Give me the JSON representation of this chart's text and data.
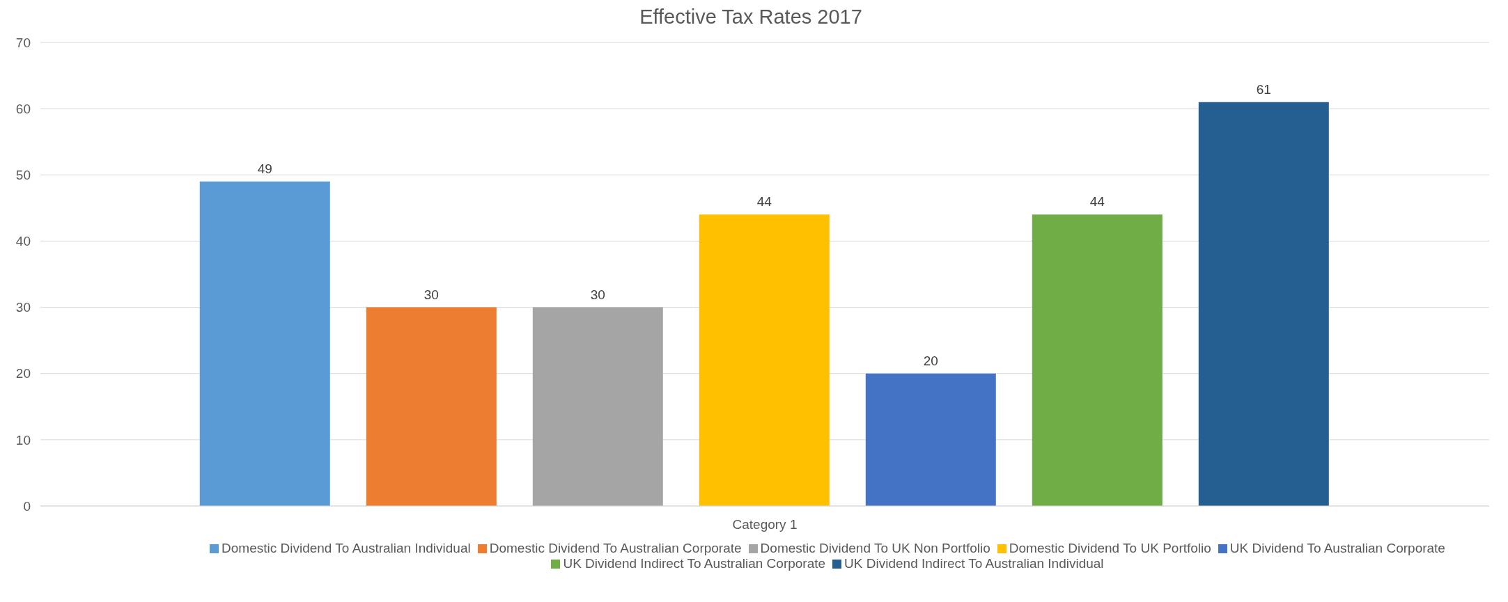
{
  "chart_data": {
    "type": "bar",
    "title": "Effective Tax Rates 2017",
    "categories": [
      "Category 1"
    ],
    "series": [
      {
        "name": "Domestic Dividend To Australian Individual",
        "color": "#5b9bd5",
        "values": [
          49
        ]
      },
      {
        "name": "Domestic Dividend To Australian Corporate",
        "color": "#ed7d31",
        "values": [
          30
        ]
      },
      {
        "name": "Domestic Dividend To UK Non Portfolio",
        "color": "#a5a5a5",
        "values": [
          30
        ]
      },
      {
        "name": "Domestic Dividend To UK Portfolio",
        "color": "#ffc000",
        "values": [
          44
        ]
      },
      {
        "name": "UK Dividend To Australian Corporate",
        "color": "#4472c4",
        "values": [
          20
        ]
      },
      {
        "name": "UK Dividend Indirect To Australian Corporate",
        "color": "#70ad47",
        "values": [
          44
        ]
      },
      {
        "name": "UK Dividend Indirect To Australian Individual",
        "color": "#255e91",
        "values": [
          61
        ]
      }
    ],
    "ylim": [
      0,
      70
    ],
    "yticks": [
      0,
      10,
      20,
      30,
      40,
      50,
      60,
      70
    ],
    "grid": "y",
    "legend": "bottom",
    "data_labels": true
  }
}
